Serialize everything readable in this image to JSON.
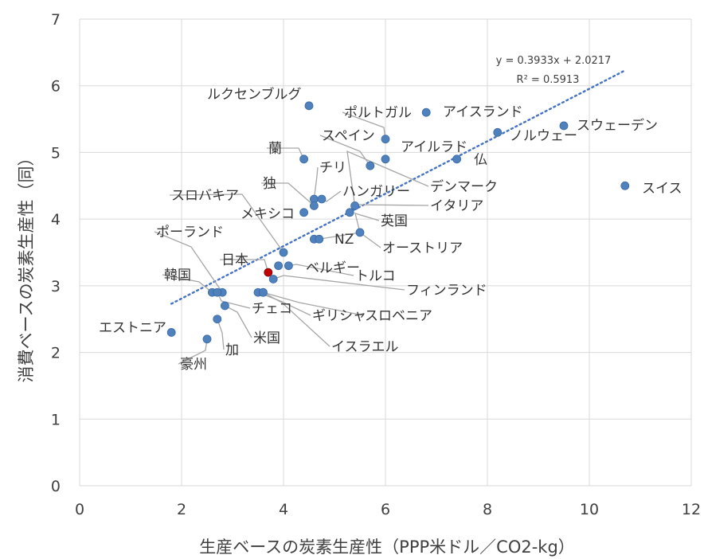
{
  "chart_data": {
    "type": "scatter",
    "title": "",
    "xlabel": "生産ベースの炭素生産性（PPP米ドル／CO2-kg）",
    "ylabel": "消費ベースの炭素生産性（同）",
    "xlim": [
      0,
      12
    ],
    "ylim": [
      0,
      7
    ],
    "xticks": [
      "0",
      "2",
      "4",
      "6",
      "8",
      "10",
      "12"
    ],
    "yticks": [
      "0",
      "1",
      "2",
      "3",
      "4",
      "5",
      "6",
      "7"
    ],
    "grid": true,
    "colors": {
      "point": "#4f81bd",
      "highlight": "#c00000",
      "trend": "#4472c4",
      "grid": "#d9d9d9"
    },
    "points": [
      {
        "label": "ルクセンブルグ",
        "x": 4.5,
        "y": 5.7
      },
      {
        "label": "ポルトガル",
        "x": 6.0,
        "y": 5.2
      },
      {
        "label": "アイスランド",
        "x": 6.8,
        "y": 5.6
      },
      {
        "label": "スペイン",
        "x": 5.7,
        "y": 4.8
      },
      {
        "label": "アイルラド",
        "x": 6.0,
        "y": 4.9
      },
      {
        "label": "ノルウェー",
        "x": 8.2,
        "y": 5.3
      },
      {
        "label": "スウェーデン",
        "x": 9.5,
        "y": 5.4
      },
      {
        "label": "仏",
        "x": 7.4,
        "y": 4.9
      },
      {
        "label": "蘭",
        "x": 4.4,
        "y": 4.9
      },
      {
        "label": "チリ",
        "x": 4.6,
        "y": 4.3
      },
      {
        "label": "独",
        "x": 4.6,
        "y": 4.2
      },
      {
        "label": "ハンガリー",
        "x": 4.75,
        "y": 4.3
      },
      {
        "label": "デンマーク",
        "x": 5.4,
        "y": 4.2
      },
      {
        "label": "スイス",
        "x": 10.7,
        "y": 4.5
      },
      {
        "label": "スロバキア",
        "x": 4.0,
        "y": 3.5
      },
      {
        "label": "メキシコ",
        "x": 4.4,
        "y": 4.1
      },
      {
        "label": "イタリア",
        "x": 5.3,
        "y": 4.1
      },
      {
        "label": "英国",
        "x": 5.5,
        "y": 3.8
      },
      {
        "label": "NZ",
        "x": 4.6,
        "y": 3.7
      },
      {
        "label": "オーストリア",
        "x": 4.7,
        "y": 3.7
      },
      {
        "label": "ポーランド",
        "x": 2.8,
        "y": 2.9
      },
      {
        "label": "日本",
        "x": 3.7,
        "y": 3.2,
        "highlight": true
      },
      {
        "label": "ベルギー",
        "x": 3.9,
        "y": 3.3
      },
      {
        "label": "トルコ",
        "x": 4.1,
        "y": 3.3
      },
      {
        "label": "フィンランド",
        "x": 3.8,
        "y": 3.1
      },
      {
        "label": "韓国",
        "x": 2.6,
        "y": 2.9
      },
      {
        "label": "チェコ",
        "x": 2.7,
        "y": 2.9
      },
      {
        "label": "ギリシャ",
        "x": 3.5,
        "y": 2.9
      },
      {
        "label": "スロベニア",
        "x": 3.6,
        "y": 2.9
      },
      {
        "label": "エストニア",
        "x": 1.8,
        "y": 2.3
      },
      {
        "label": "米国",
        "x": 2.85,
        "y": 2.7
      },
      {
        "label": "加",
        "x": 2.7,
        "y": 2.5
      },
      {
        "label": "イスラエル",
        "x": 3.6,
        "y": 2.9
      },
      {
        "label": "豪州",
        "x": 2.5,
        "y": 2.2
      }
    ],
    "trendline": {
      "type": "linear",
      "slope": 0.3933,
      "intercept": 2.0217,
      "x_range": [
        1.8,
        10.7
      ],
      "equation": "y = 0.3933x + 2.0217",
      "r_squared": "R² = 0.5913"
    }
  }
}
